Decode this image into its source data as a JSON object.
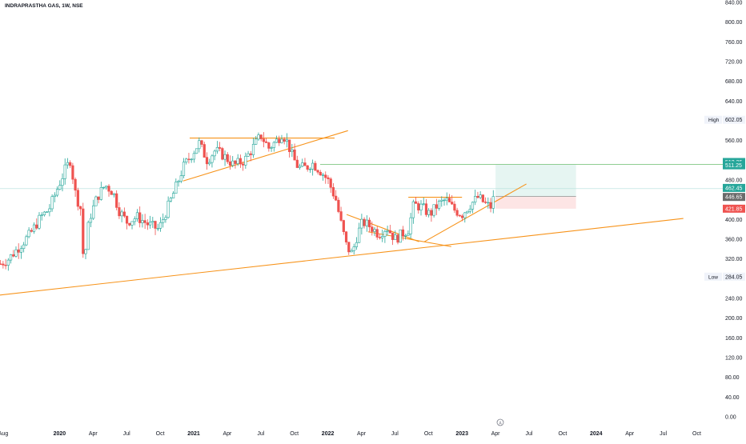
{
  "header": {
    "symbol": "INDRAPRASTHA GAS, 1W, NSE"
  },
  "colors": {
    "up": "#26a69a",
    "down": "#ef5350",
    "trendline": "#f7931a",
    "target_line": "#4caf50",
    "target_zone": "#e0f2ef",
    "stop_zone": "#fde2e2",
    "current_line": "#b2dfdb",
    "grid_text": "#131722"
  },
  "chart_data": {
    "type": "candlestick",
    "timeframe": "1W",
    "y_axis": {
      "ylim": [
        0,
        840
      ],
      "ticks": [
        "840.00",
        "800.00",
        "760.00",
        "720.00",
        "680.00",
        "640.00",
        "560.00",
        "480.00",
        "400.00",
        "360.00",
        "320.00",
        "240.00",
        "200.00",
        "160.00",
        "120.00",
        "80.00",
        "40.00",
        "0.00"
      ],
      "tick_values": [
        840,
        800,
        760,
        720,
        680,
        640,
        560,
        480,
        400,
        360,
        320,
        240,
        200,
        160,
        120,
        80,
        40,
        0
      ]
    },
    "x_axis": {
      "ticks": [
        {
          "label": "Aug",
          "t": 2019.58
        },
        {
          "label": "2020",
          "t": 2020.0
        },
        {
          "label": "Apr",
          "t": 2020.25
        },
        {
          "label": "Jul",
          "t": 2020.5
        },
        {
          "label": "Oct",
          "t": 2020.75
        },
        {
          "label": "2021",
          "t": 2021.0
        },
        {
          "label": "Apr",
          "t": 2021.25
        },
        {
          "label": "Jul",
          "t": 2021.5
        },
        {
          "label": "Oct",
          "t": 2021.75
        },
        {
          "label": "2022",
          "t": 2022.0
        },
        {
          "label": "Apr",
          "t": 2022.25
        },
        {
          "label": "Jul",
          "t": 2022.5
        },
        {
          "label": "Oct",
          "t": 2022.75
        },
        {
          "label": "2023",
          "t": 2023.0
        },
        {
          "label": "Apr",
          "t": 2023.25
        },
        {
          "label": "Jul",
          "t": 2023.5
        },
        {
          "label": "Oct",
          "t": 2023.75
        },
        {
          "label": "2024",
          "t": 2024.0
        },
        {
          "label": "Apr",
          "t": 2024.25
        },
        {
          "label": "Jul",
          "t": 2024.5
        },
        {
          "label": "Oct",
          "t": 2024.75
        }
      ]
    },
    "price_path": [
      [
        2019.56,
        310
      ],
      [
        2019.62,
        320
      ],
      [
        2019.7,
        345
      ],
      [
        2019.78,
        370
      ],
      [
        2019.86,
        405
      ],
      [
        2019.92,
        420
      ],
      [
        2019.98,
        460
      ],
      [
        2020.04,
        500
      ],
      [
        2020.08,
        520
      ],
      [
        2020.12,
        450
      ],
      [
        2020.16,
        420
      ],
      [
        2020.18,
        305
      ],
      [
        2020.22,
        400
      ],
      [
        2020.28,
        445
      ],
      [
        2020.34,
        470
      ],
      [
        2020.4,
        455
      ],
      [
        2020.44,
        420
      ],
      [
        2020.5,
        395
      ],
      [
        2020.58,
        405
      ],
      [
        2020.66,
        390
      ],
      [
        2020.74,
        380
      ],
      [
        2020.8,
        420
      ],
      [
        2020.86,
        460
      ],
      [
        2020.92,
        505
      ],
      [
        2020.98,
        530
      ],
      [
        2021.04,
        555
      ],
      [
        2021.1,
        520
      ],
      [
        2021.16,
        540
      ],
      [
        2021.22,
        530
      ],
      [
        2021.3,
        510
      ],
      [
        2021.38,
        520
      ],
      [
        2021.44,
        545
      ],
      [
        2021.5,
        570
      ],
      [
        2021.56,
        545
      ],
      [
        2021.62,
        560
      ],
      [
        2021.66,
        575
      ],
      [
        2021.7,
        555
      ],
      [
        2021.74,
        525
      ],
      [
        2021.78,
        505
      ],
      [
        2021.84,
        505
      ],
      [
        2021.88,
        515
      ],
      [
        2021.94,
        500
      ],
      [
        2022.0,
        480
      ],
      [
        2022.06,
        440
      ],
      [
        2022.1,
        390
      ],
      [
        2022.14,
        345
      ],
      [
        2022.18,
        330
      ],
      [
        2022.22,
        370
      ],
      [
        2022.26,
        395
      ],
      [
        2022.32,
        385
      ],
      [
        2022.38,
        370
      ],
      [
        2022.44,
        385
      ],
      [
        2022.5,
        360
      ],
      [
        2022.55,
        370
      ],
      [
        2022.6,
        380
      ],
      [
        2022.64,
        430
      ],
      [
        2022.7,
        425
      ],
      [
        2022.76,
        410
      ],
      [
        2022.82,
        430
      ],
      [
        2022.88,
        440
      ],
      [
        2022.94,
        420
      ],
      [
        2023.0,
        410
      ],
      [
        2023.06,
        430
      ],
      [
        2023.12,
        445
      ],
      [
        2023.18,
        430
      ],
      [
        2023.22,
        425
      ],
      [
        2023.25,
        462
      ]
    ],
    "annotations": {
      "high_label": "High",
      "high_value": "602.05",
      "low_label": "Low",
      "low_value": "284.05",
      "target_labels": [
        "512.35",
        "511.25"
      ],
      "current_price": "462.45",
      "entry_price": "446.65",
      "stop_price": "421.85",
      "target_value": 511.25,
      "entry_value": 446.65,
      "stop_value": 421.85,
      "current_value": 462.45,
      "position_start_t": 2023.25,
      "position_end_t": 2023.85
    },
    "trendlines": [
      {
        "name": "long-term-support",
        "from": [
          2019.5,
          245
        ],
        "to": [
          2024.65,
          402
        ]
      },
      {
        "name": "triangle-top-2021",
        "from": [
          2020.97,
          565
        ],
        "to": [
          2022.05,
          565
        ]
      },
      {
        "name": "triangle-bottom-2021",
        "from": [
          2020.92,
          478
        ],
        "to": [
          2022.15,
          580
        ]
      },
      {
        "name": "falling-wedge-2022",
        "from": [
          2022.14,
          410
        ],
        "to": [
          2022.68,
          355
        ]
      },
      {
        "name": "resistance-2023",
        "from": [
          2022.6,
          445
        ],
        "to": [
          2023.0,
          445
        ]
      },
      {
        "name": "rising-support-2023",
        "from": [
          2022.72,
          355
        ],
        "to": [
          2023.48,
          472
        ]
      },
      {
        "name": "short-cross-2022",
        "from": [
          2022.3,
          375
        ],
        "to": [
          2022.92,
          345
        ]
      }
    ]
  }
}
